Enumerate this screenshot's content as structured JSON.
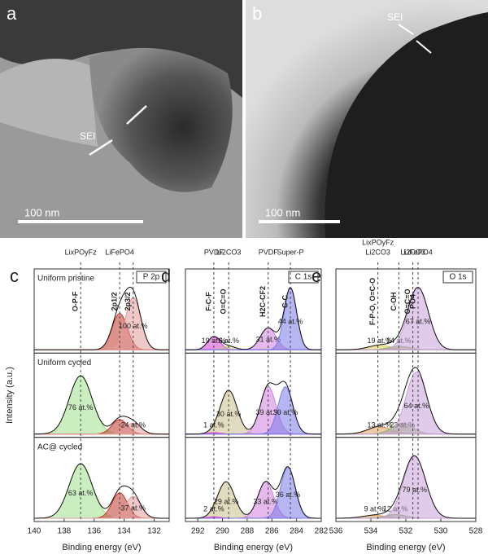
{
  "images": [
    {
      "label": "a",
      "scale": "100 nm",
      "annotation": "SEI"
    },
    {
      "label": "b",
      "scale": "100 nm",
      "annotation": "SEI"
    }
  ],
  "chart_data": [
    {
      "type": "xps",
      "panel": "c",
      "tag": "P 2p",
      "xlabel": "Binding energy (eV)",
      "ylabel": "Intensity (a.u.)",
      "xlim": [
        140,
        131
      ],
      "xticks": [
        140,
        138,
        136,
        134,
        132
      ],
      "refs": [
        {
          "x": 136.9,
          "top": [
            "LixPOyFz"
          ],
          "annotation": "O-P-F"
        },
        {
          "x": 134.3,
          "top": [
            "LiFePO4"
          ],
          "annotation": "2p1/2"
        },
        {
          "x": 133.4,
          "top": [],
          "annotation": "2p3/2"
        }
      ],
      "rows": [
        {
          "label": "Uniform pristine",
          "peaks": [
            {
              "center": 134.3,
              "height": 0.5,
              "width": 1.2,
              "color": "#c0392b"
            },
            {
              "center": 133.4,
              "height": 0.72,
              "width": 1.2,
              "color": "#e39a9a",
              "percent": 100,
              "value_label": "100 at.%"
            }
          ]
        },
        {
          "label": "Uniform cycled",
          "peaks": [
            {
              "center": 136.9,
              "height": 0.8,
              "width": 1.8,
              "color": "#9fe08a",
              "percent": 76,
              "value_label": "76 at.%"
            },
            {
              "center": 134.3,
              "height": 0.2,
              "width": 1.2,
              "color": "#c0392b"
            },
            {
              "center": 133.4,
              "height": 0.15,
              "width": 1.2,
              "color": "#e39a9a",
              "percent": 24,
              "value_label": "24 at.%"
            }
          ]
        },
        {
          "label": "AC@ cycled",
          "peaks": [
            {
              "center": 136.9,
              "height": 0.75,
              "width": 1.8,
              "color": "#9fe08a",
              "percent": 63,
              "value_label": "63 at.%"
            },
            {
              "center": 134.3,
              "height": 0.35,
              "width": 1.2,
              "color": "#c0392b"
            },
            {
              "center": 133.4,
              "height": 0.3,
              "width": 1.2,
              "color": "#e39a9a",
              "percent": 37,
              "value_label": "37 at.%"
            }
          ]
        }
      ]
    },
    {
      "type": "xps",
      "panel": "d",
      "tag": "C 1s",
      "xlabel": "Binding energy (eV)",
      "xlim": [
        293,
        282
      ],
      "xticks": [
        292,
        290,
        288,
        286,
        284,
        282
      ],
      "refs": [
        {
          "x": 290.7,
          "top": [
            "PVDF"
          ],
          "annotation": "F-C-F"
        },
        {
          "x": 289.5,
          "top": [
            "Li2CO3"
          ],
          "annotation": "O=C=O"
        },
        {
          "x": 286.3,
          "top": [
            "PVDF"
          ],
          "annotation": "H2C-CF2"
        },
        {
          "x": 284.5,
          "top": [
            "Super-P"
          ],
          "annotation": "C-C"
        }
      ],
      "rows": [
        {
          "peaks": [
            {
              "center": 290.7,
              "height": 0.18,
              "width": 1.2,
              "color": "#d63fd6",
              "percent": 19,
              "value_label": "19 at.%"
            },
            {
              "center": 289.5,
              "height": 0.05,
              "width": 1.3,
              "color": "#c8c08a",
              "percent": 6,
              "value_label": "6 at.%"
            },
            {
              "center": 286.3,
              "height": 0.3,
              "width": 1.5,
              "color": "#d080e0",
              "percent": 31,
              "value_label": "31 at.%"
            },
            {
              "center": 284.5,
              "height": 0.85,
              "width": 1.2,
              "color": "#7a7ae8",
              "percent": 44,
              "value_label": "44 at.%"
            }
          ]
        },
        {
          "peaks": [
            {
              "center": 289.5,
              "height": 0.6,
              "width": 1.6,
              "color": "#c8c08a",
              "percent": 30,
              "value_label": "30 at.%"
            },
            {
              "center": 290.7,
              "height": 0.02,
              "width": 1.2,
              "color": "#d63fd6",
              "percent": 1,
              "value_label": "1 at.%"
            },
            {
              "center": 286.3,
              "height": 0.65,
              "width": 1.5,
              "color": "#d080e0",
              "percent": 39,
              "value_label": "39 at.%"
            },
            {
              "center": 284.9,
              "height": 0.65,
              "width": 1.4,
              "color": "#7a7ae8",
              "percent": 30,
              "value_label": "30 at.%"
            }
          ]
        },
        {
          "peaks": [
            {
              "center": 289.7,
              "height": 0.5,
              "width": 1.6,
              "color": "#c8c08a",
              "percent": 29,
              "value_label": "29 at.%"
            },
            {
              "center": 290.7,
              "height": 0.02,
              "width": 1.2,
              "color": "#d63fd6",
              "percent": 2,
              "value_label": "2 at.%"
            },
            {
              "center": 286.5,
              "height": 0.5,
              "width": 1.5,
              "color": "#d080e0",
              "percent": 33,
              "value_label": "33 at.%"
            },
            {
              "center": 284.7,
              "height": 0.7,
              "width": 1.4,
              "color": "#7a7ae8",
              "percent": 36,
              "value_label": "36 at.%"
            }
          ]
        }
      ]
    },
    {
      "type": "xps",
      "panel": "e",
      "tag": "O 1s",
      "xlabel": "Binding energy (eV)",
      "xlim": [
        536,
        528
      ],
      "xticks": [
        536,
        534,
        532,
        530,
        528
      ],
      "refs": [
        {
          "x": 533.6,
          "top": [
            "LixPOyFz",
            "Li2CO3"
          ],
          "annotation": "F-P-O, O=C-O"
        },
        {
          "x": 532.4,
          "top": [],
          "annotation": "C-OH"
        },
        {
          "x": 531.6,
          "top": [
            "Li2CO3"
          ],
          "annotation": "O=C=O"
        },
        {
          "x": 531.3,
          "top": [
            "LiFePO4"
          ],
          "annotation": "PO4"
        }
      ],
      "rows": [
        {
          "peaks": [
            {
              "center": 533.5,
              "height": 0.06,
              "width": 1.6,
              "color": "#e0d060",
              "percent": 19,
              "value_label": "19 at.%"
            },
            {
              "center": 532.4,
              "height": 0.05,
              "width": 1.4,
              "color": "#90b070",
              "percent": 14,
              "value_label": "14 at.%"
            },
            {
              "center": 531.3,
              "height": 0.85,
              "width": 1.4,
              "color": "#c8a0d8",
              "percent": 67,
              "value_label": "67 at.%"
            }
          ]
        },
        {
          "peaks": [
            {
              "center": 533.5,
              "height": 0.1,
              "width": 1.6,
              "color": "#e0a060",
              "percent": 13,
              "value_label": "13 at.%"
            },
            {
              "center": 532.2,
              "height": 0.15,
              "width": 1.4,
              "color": "#90b070",
              "percent": 23,
              "value_label": "23 at.%"
            },
            {
              "center": 531.4,
              "height": 0.85,
              "width": 1.4,
              "color": "#c8a0d8",
              "percent": 64,
              "value_label": "64 at.%"
            }
          ]
        },
        {
          "peaks": [
            {
              "center": 533.8,
              "height": 0.04,
              "width": 1.6,
              "color": "#e0a060",
              "percent": 9,
              "value_label": "9 at.%"
            },
            {
              "center": 532.6,
              "height": 0.05,
              "width": 1.4,
              "color": "#90b070",
              "percent": 12,
              "value_label": "12 at.%"
            },
            {
              "center": 531.5,
              "height": 0.85,
              "width": 1.5,
              "color": "#c8a0d8",
              "percent": 79,
              "value_label": "79 at.%"
            }
          ]
        }
      ]
    }
  ]
}
